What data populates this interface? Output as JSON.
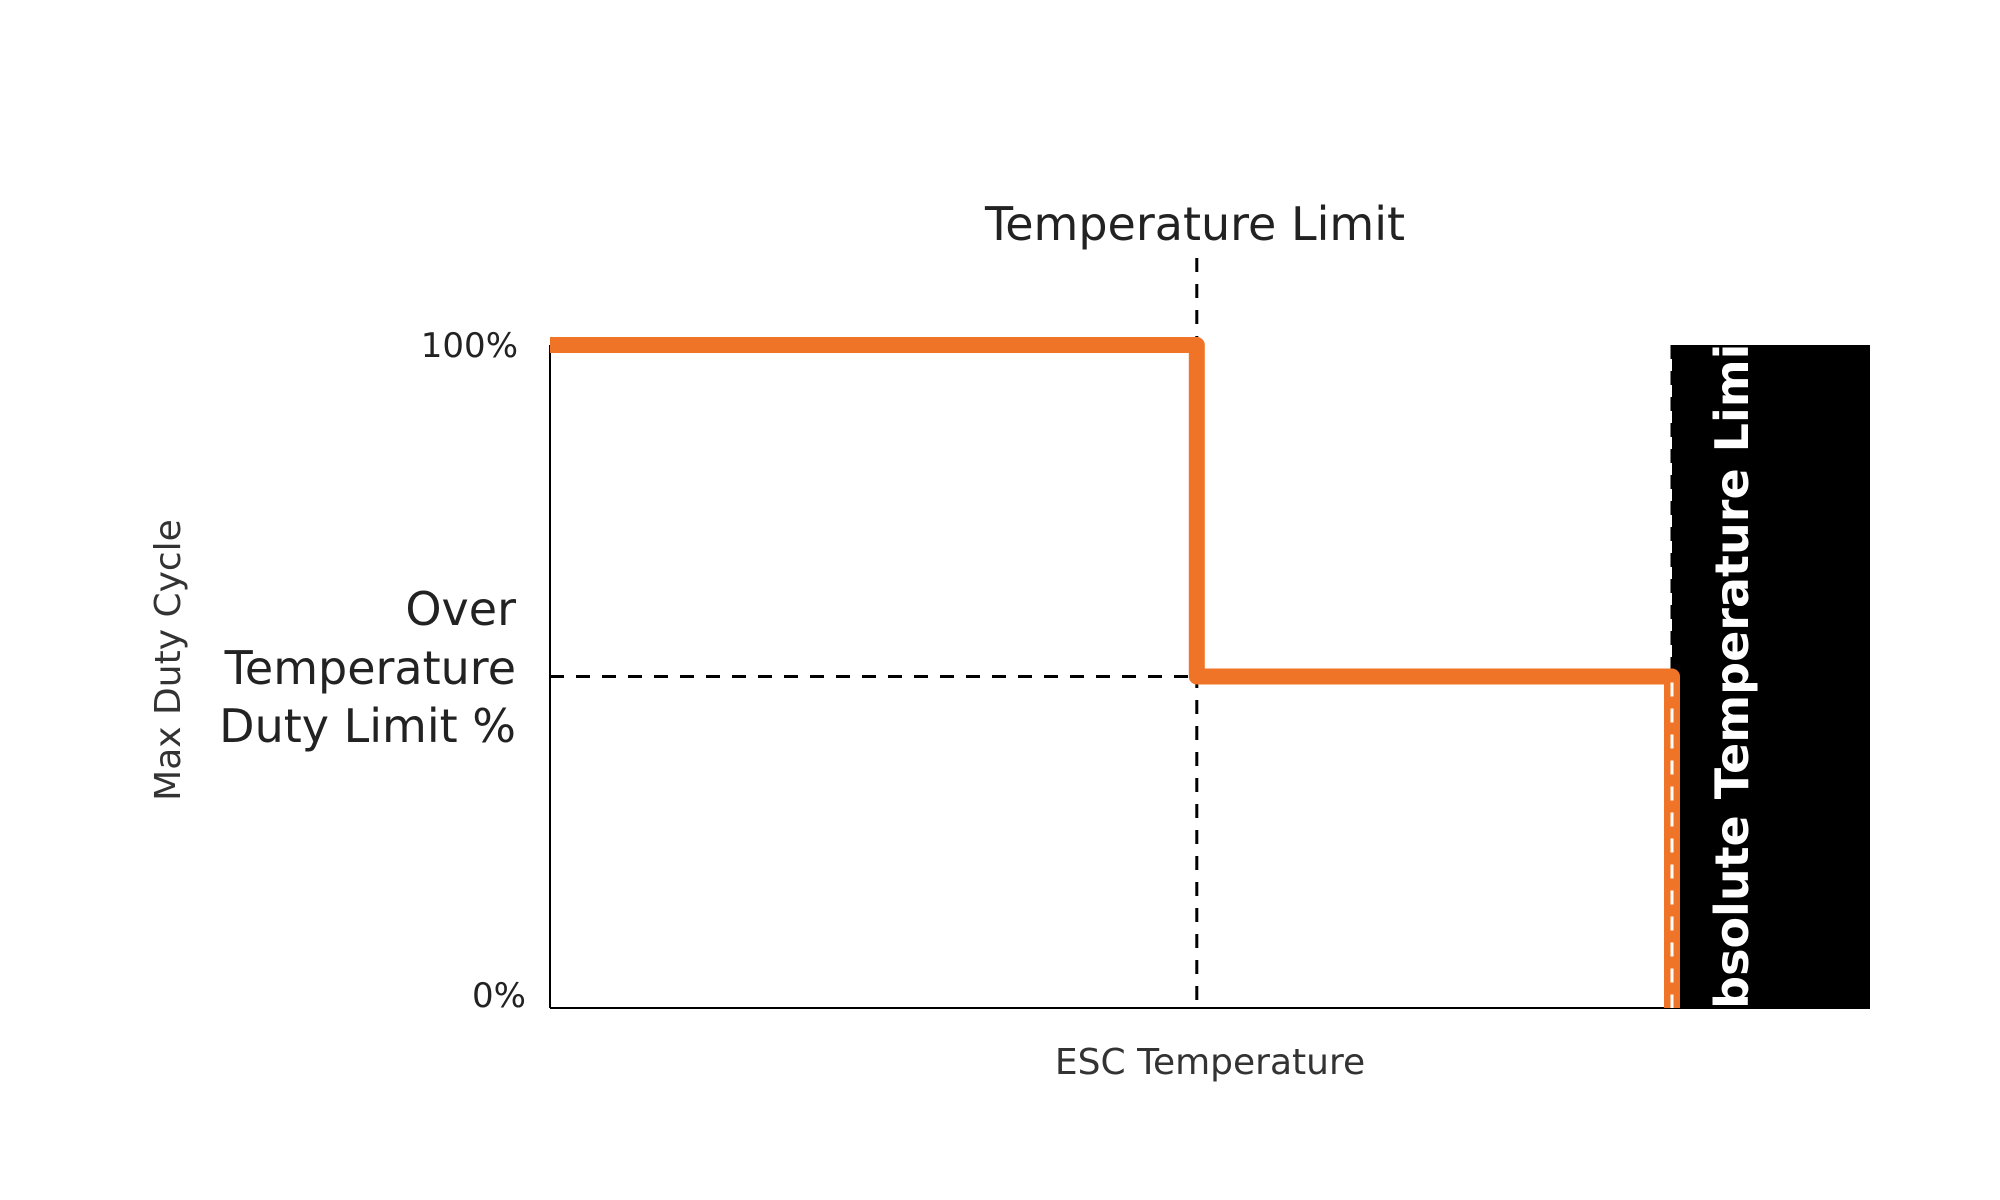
{
  "chart_data": {
    "type": "line",
    "xlabel": "ESC Temperature",
    "ylabel": "Max Duty Cycle",
    "y_ticks": [
      "100%",
      "0%"
    ],
    "x_range": [
      0,
      100
    ],
    "y_range": [
      0,
      100
    ],
    "temperature_limit_label": "Temperature Limit",
    "temperature_limit_x": 49,
    "over_temp_duty_label": [
      "Over",
      "Temperature",
      "Duty Limit %"
    ],
    "over_temp_duty_value": 50,
    "absolute_limit_label": "Absolute Temperature Limit",
    "absolute_limit_x": 85,
    "series": [
      {
        "color": "#f07427",
        "points": [
          [
            0,
            100
          ],
          [
            49,
            100
          ],
          [
            49,
            50
          ],
          [
            85,
            50
          ],
          [
            85,
            0
          ]
        ]
      }
    ],
    "grid": false,
    "colors": {
      "line": "#f07427",
      "axis": "#000000",
      "absolute_zone": "#000000",
      "text": "#222222"
    }
  }
}
